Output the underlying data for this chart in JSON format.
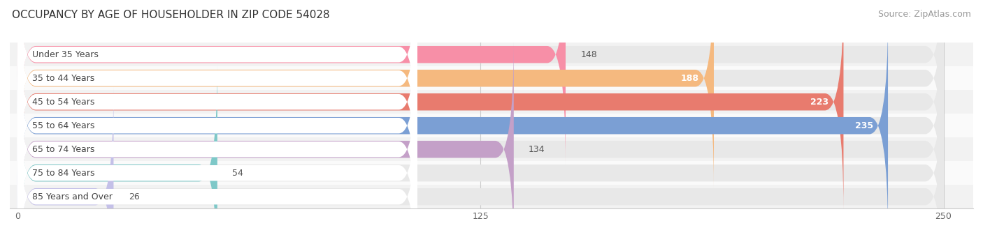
{
  "title": "OCCUPANCY BY AGE OF HOUSEHOLDER IN ZIP CODE 54028",
  "source": "Source: ZipAtlas.com",
  "categories": [
    "Under 35 Years",
    "35 to 44 Years",
    "45 to 54 Years",
    "55 to 64 Years",
    "65 to 74 Years",
    "75 to 84 Years",
    "85 Years and Over"
  ],
  "values": [
    148,
    188,
    223,
    235,
    134,
    54,
    26
  ],
  "bar_colors": [
    "#F78FA7",
    "#F5B97F",
    "#E87B6E",
    "#7B9FD4",
    "#C4A0C8",
    "#7EC8C8",
    "#C4C0E8"
  ],
  "bar_bg_color": "#E8E8E8",
  "label_bg_color": "#FFFFFF",
  "xlim_max": 250,
  "xticks": [
    0,
    125,
    250
  ],
  "title_fontsize": 11,
  "source_fontsize": 9,
  "label_fontsize": 9,
  "value_fontsize": 9,
  "bg_color": "#FFFFFF",
  "row_bg_colors": [
    "#F2F2F2",
    "#FAFAFA"
  ],
  "inside_threshold": 180,
  "inside_value_color": "#FFFFFF",
  "outside_value_color": "#555555"
}
